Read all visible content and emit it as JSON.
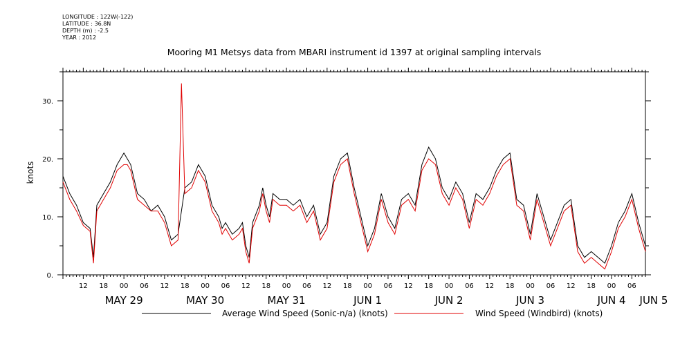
{
  "meta": {
    "longitude": "LONGITUDE : 122W(-122)",
    "latitude": "LATITUDE : 36.8N",
    "depth": "DEPTH (m) : -2.5",
    "year": "YEAR : 2012"
  },
  "chart_data": {
    "type": "line",
    "title": "Mooring M1 Metsys data from MBARI instrument id 1397 at original sampling intervals",
    "ylabel": "knots",
    "xlabel": "",
    "ylim": [
      0,
      35
    ],
    "yticks": [
      0,
      10,
      20,
      30
    ],
    "ytick_labels": [
      "0.",
      "10.",
      "20.",
      "30."
    ],
    "x_unit": "hours since May 28 2012 00:00",
    "xlim": [
      6,
      178
    ],
    "hour_tick_labels": [
      "12",
      "18",
      "00",
      "06",
      "12",
      "18",
      "00",
      "06",
      "12",
      "18",
      "00",
      "06",
      "12",
      "18",
      "00",
      "06",
      "12",
      "18",
      "00",
      "06",
      "12",
      "18",
      "00",
      "06",
      "12",
      "18",
      "00",
      "06"
    ],
    "hour_tick_values": [
      12,
      18,
      24,
      30,
      36,
      42,
      48,
      54,
      60,
      66,
      72,
      78,
      84,
      90,
      96,
      102,
      108,
      114,
      120,
      126,
      132,
      138,
      144,
      150,
      156,
      162,
      168,
      174
    ],
    "date_labels": [
      {
        "label": "MAY 29",
        "x": 24
      },
      {
        "label": "MAY 30",
        "x": 48
      },
      {
        "label": "MAY 31",
        "x": 72
      },
      {
        "label": "JUN  1",
        "x": 96
      },
      {
        "label": "JUN  2",
        "x": 120
      },
      {
        "label": "JUN  3",
        "x": 144
      },
      {
        "label": "JUN  4",
        "x": 168
      },
      {
        "label": "JUN  5",
        "x": 184
      }
    ],
    "series": [
      {
        "name": "Average Wind Speed (Sonic-n/a) (knots)",
        "color": "#000000",
        "x": [
          6,
          8,
          10,
          12,
          13,
          14,
          15,
          16,
          18,
          20,
          22,
          24,
          25,
          26,
          28,
          30,
          32,
          34,
          36,
          38,
          40,
          41,
          42,
          44,
          46,
          48,
          50,
          52,
          53,
          54,
          56,
          58,
          59,
          60,
          61,
          62,
          64,
          65,
          66,
          67,
          68,
          70,
          72,
          74,
          76,
          78,
          80,
          82,
          84,
          86,
          88,
          90,
          92,
          94,
          96,
          98,
          100,
          102,
          104,
          106,
          108,
          110,
          112,
          114,
          116,
          118,
          120,
          122,
          124,
          126,
          128,
          130,
          132,
          134,
          136,
          138,
          140,
          142,
          144,
          146,
          148,
          150,
          152,
          154,
          156,
          158,
          160,
          162,
          164,
          166,
          168,
          170,
          172,
          174,
          176,
          178
        ],
        "y": [
          17,
          14,
          12,
          9,
          8.5,
          8,
          3,
          12,
          14,
          16,
          19,
          21,
          20,
          19,
          14,
          13,
          11,
          12,
          10,
          6,
          7,
          11,
          15,
          16,
          19,
          17,
          12,
          10,
          8,
          9,
          7,
          8,
          9,
          5,
          3,
          9,
          12,
          15,
          12,
          10,
          14,
          13,
          13,
          12,
          13,
          10,
          12,
          7,
          9,
          17,
          20,
          21,
          15,
          10,
          5,
          8,
          14,
          10,
          8,
          13,
          14,
          12,
          19,
          22,
          20,
          15,
          13,
          16,
          14,
          9,
          14,
          13,
          15,
          18,
          20,
          21,
          13,
          12,
          7,
          14,
          10,
          6,
          9,
          12,
          13,
          5,
          3,
          4,
          3,
          2,
          5,
          9,
          11,
          14,
          9,
          5
        ],
        "y_note": "estimated"
      },
      {
        "name": "Wind Speed (Windbird) (knots)",
        "color": "#e00000",
        "x": [
          6,
          8,
          10,
          12,
          13,
          14,
          15,
          16,
          18,
          20,
          22,
          24,
          25,
          26,
          28,
          30,
          32,
          34,
          36,
          38,
          40,
          41,
          42,
          44,
          46,
          48,
          50,
          52,
          53,
          54,
          56,
          58,
          59,
          60,
          61,
          62,
          64,
          65,
          66,
          67,
          68,
          70,
          72,
          74,
          76,
          78,
          80,
          82,
          84,
          86,
          88,
          90,
          92,
          94,
          96,
          98,
          100,
          102,
          104,
          106,
          108,
          110,
          112,
          114,
          116,
          118,
          120,
          122,
          124,
          126,
          128,
          130,
          132,
          134,
          136,
          138,
          140,
          142,
          144,
          146,
          148,
          150,
          152,
          154,
          156,
          158,
          160,
          162,
          164,
          166,
          168,
          170,
          172,
          174,
          176,
          178
        ],
        "y": [
          16,
          13,
          11,
          8.5,
          8,
          7.5,
          2,
          11,
          13,
          15,
          18,
          19,
          19,
          18,
          13,
          12,
          11,
          11,
          9,
          5,
          6,
          33,
          14,
          15,
          18,
          16,
          11,
          9,
          7,
          8,
          6,
          7,
          8,
          4,
          2,
          8,
          11,
          14,
          11,
          9,
          13,
          12,
          12,
          11,
          12,
          9,
          11,
          6,
          8,
          16,
          19,
          20,
          14,
          9,
          4,
          7,
          13,
          9,
          7,
          12,
          13,
          11,
          18,
          20,
          19,
          14,
          12,
          15,
          13,
          8,
          13,
          12,
          14,
          17,
          19,
          20,
          12,
          11,
          6,
          13,
          9,
          5,
          8,
          11,
          12,
          4,
          2,
          3,
          2,
          1,
          4,
          8,
          10,
          13,
          8,
          4
        ],
        "y_note": "estimated"
      }
    ],
    "legend": {
      "position": "bottom-center"
    }
  }
}
